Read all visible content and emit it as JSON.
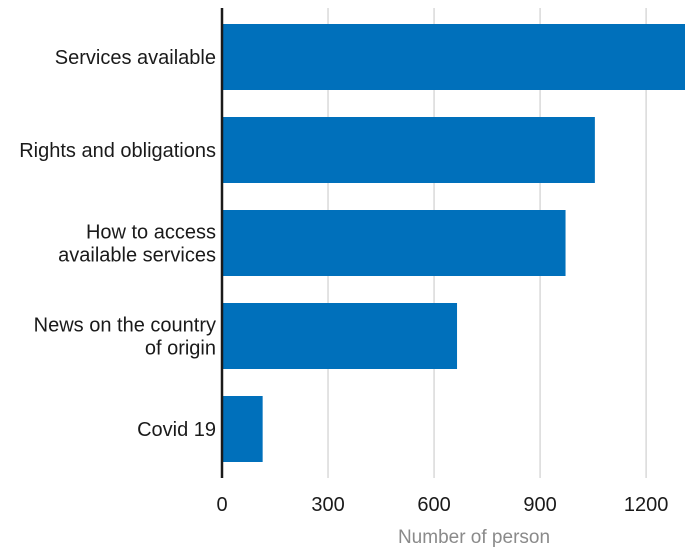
{
  "chart_data": {
    "type": "bar",
    "orientation": "horizontal",
    "categories": [
      [
        "Services available"
      ],
      [
        "Rights and obligations"
      ],
      [
        "How to access",
        "available services"
      ],
      [
        "News on the country",
        "of origin"
      ],
      [
        "Covid 19"
      ]
    ],
    "values": [
      1310,
      1055,
      972,
      665,
      115
    ],
    "x_ticks": [
      "0",
      "300",
      "600",
      "900",
      "1200"
    ],
    "x_tick_values": [
      0,
      300,
      600,
      900,
      1200
    ],
    "xlim": [
      0,
      1310
    ],
    "xlabel": "Number of person",
    "ylabel": "",
    "title": "",
    "grid": "vertical",
    "legend": "none",
    "bar_color": "#0070bb"
  }
}
